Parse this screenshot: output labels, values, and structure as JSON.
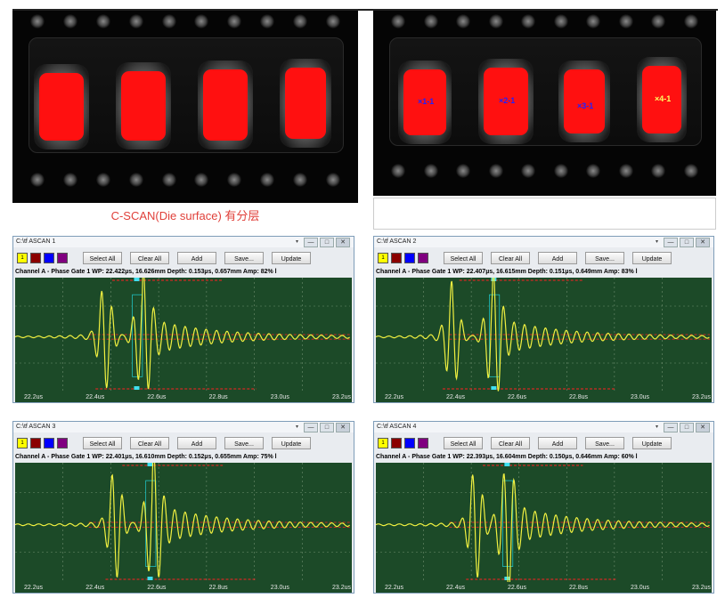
{
  "top_panel": {
    "caption": "C-SCAN(Die surface) 有分层",
    "markers": [
      "1-1",
      "2-1",
      "3-1",
      "4-1"
    ]
  },
  "ascans": [
    {
      "title": "C:\\tf ASCAN 1",
      "buttons": {
        "select_all": "Select All",
        "clear_all": "Clear All",
        "add": "Add",
        "save": "Save...",
        "update": "Update"
      },
      "swatch_label": "1",
      "channel_text": "Channel A - Phase Gate 1 WP: 22.422µs, 16.626mm  Depth: 0.153µs, 0.657mm  Amp: 82% l",
      "ticks": [
        "22.2us",
        "22.4us",
        "22.6us",
        "22.8us",
        "23.0us",
        "23.2us"
      ]
    },
    {
      "title": "C:\\tf ASCAN 2",
      "buttons": {
        "select_all": "Select All",
        "clear_all": "Clear All",
        "add": "Add",
        "save": "Save...",
        "update": "Update"
      },
      "swatch_label": "1",
      "channel_text": "Channel A - Phase Gate 1 WP: 22.407µs, 16.615mm  Depth: 0.151µs, 0.649mm  Amp: 83% l",
      "ticks": [
        "22.2us",
        "22.4us",
        "22.6us",
        "22.8us",
        "23.0us",
        "23.2us"
      ]
    },
    {
      "title": "C:\\tf ASCAN 3",
      "buttons": {
        "select_all": "Select All",
        "clear_all": "Clear All",
        "add": "Add",
        "save": "Save...",
        "update": "Update"
      },
      "swatch_label": "1",
      "channel_text": "Channel A - Phase Gate 1 WP: 22.401µs, 16.610mm  Depth: 0.152µs, 0.655mm  Amp: 75% l",
      "ticks": [
        "22.2us",
        "22.4us",
        "22.6us",
        "22.8us",
        "23.0us",
        "23.2us"
      ]
    },
    {
      "title": "C:\\tf ASCAN 4",
      "buttons": {
        "select_all": "Select All",
        "clear_all": "Clear All",
        "add": "Add",
        "save": "Save...",
        "update": "Update"
      },
      "swatch_label": "1",
      "channel_text": "Channel A - Phase Gate 1 WP: 22.393µs, 16.604mm  Depth: 0.150µs, 0.646mm  Amp: 60% l",
      "ticks": [
        "22.2us",
        "22.4us",
        "22.6us",
        "22.8us",
        "23.0us",
        "23.2us"
      ]
    }
  ],
  "colors": {
    "swatches": [
      "#ffff00",
      "#8b0000",
      "#0000ff",
      "#800080"
    ],
    "waveform": "#f0f040",
    "plot_bg": "#1c4a28",
    "gate": "#ff2020",
    "gate_box": "#20c0c0",
    "defect": "#ff1010"
  },
  "window_controls": [
    "▾",
    "—",
    "□",
    "✕"
  ]
}
